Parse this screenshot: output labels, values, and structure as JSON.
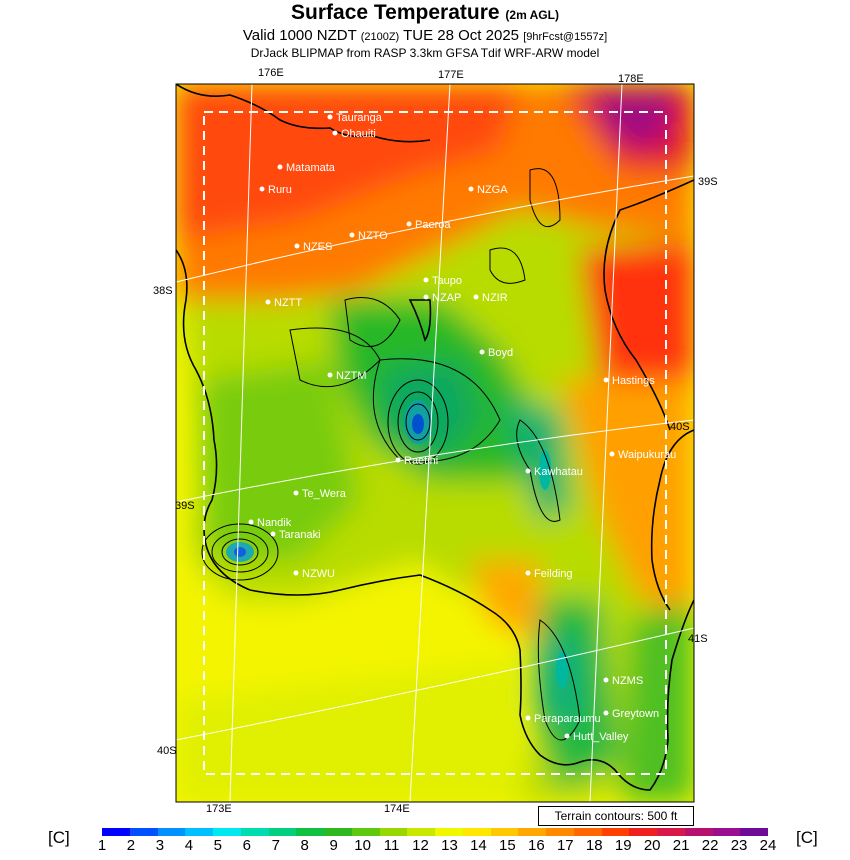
{
  "header": {
    "title": "Surface Temperature",
    "title_sub": "(2m AGL)",
    "valid_prefix": "Valid 1000 NZDT",
    "valid_utc": "(2100Z)",
    "valid_date": "TUE 28 Oct 2025",
    "valid_fcst": "[9hrFcst@1557z]",
    "source": "DrJack BLIPMAP from RASP 3.3km GFSA Tdif WRF-ARW model"
  },
  "axes": {
    "top_lon": [
      "176E",
      "177E",
      "178E"
    ],
    "bottom_lon": [
      "173E",
      "174E"
    ],
    "left_lat": [
      "38S",
      "39S",
      "40S"
    ],
    "right_lat": [
      "39S",
      "40S",
      "41S"
    ]
  },
  "places": [
    {
      "name": "Tauranga"
    },
    {
      "name": "Ohauiti"
    },
    {
      "name": "Matamata"
    },
    {
      "name": "Ruru"
    },
    {
      "name": "NZGA"
    },
    {
      "name": "Paeroa"
    },
    {
      "name": "NZTO"
    },
    {
      "name": "NZES"
    },
    {
      "name": "Taupo"
    },
    {
      "name": "NZAP"
    },
    {
      "name": "NZTT"
    },
    {
      "name": "NZIR"
    },
    {
      "name": "Boyd"
    },
    {
      "name": "NZTM"
    },
    {
      "name": "Hastings"
    },
    {
      "name": "Raetihi"
    },
    {
      "name": "Waipukurau"
    },
    {
      "name": "Kawhatau"
    },
    {
      "name": "Te_Wera"
    },
    {
      "name": "Nandik"
    },
    {
      "name": "Taranaki"
    },
    {
      "name": "NZWU"
    },
    {
      "name": "Feilding"
    },
    {
      "name": "NZMS"
    },
    {
      "name": "Greytown"
    },
    {
      "name": "Paraparaumu"
    },
    {
      "name": "Hutt_Valley"
    }
  ],
  "terrain_note": "Terrain contours: 500 ft",
  "legend": {
    "unit": "[C]",
    "ticks": [
      "1",
      "2",
      "3",
      "4",
      "5",
      "6",
      "7",
      "8",
      "9",
      "10",
      "11",
      "12",
      "13",
      "14",
      "15",
      "16",
      "17",
      "18",
      "19",
      "20",
      "21",
      "22",
      "23",
      "24"
    ],
    "colors": [
      "#0000ff",
      "#0050ff",
      "#0090ff",
      "#00c0ff",
      "#00e8f0",
      "#00dcb0",
      "#00d080",
      "#10c040",
      "#30b820",
      "#60c810",
      "#98d800",
      "#c8e800",
      "#f0f800",
      "#ffe800",
      "#ffc800",
      "#ffa800",
      "#ff8800",
      "#ff6800",
      "#ff4000",
      "#f02020",
      "#d81848",
      "#b81070",
      "#981090",
      "#6c0c98"
    ]
  }
}
